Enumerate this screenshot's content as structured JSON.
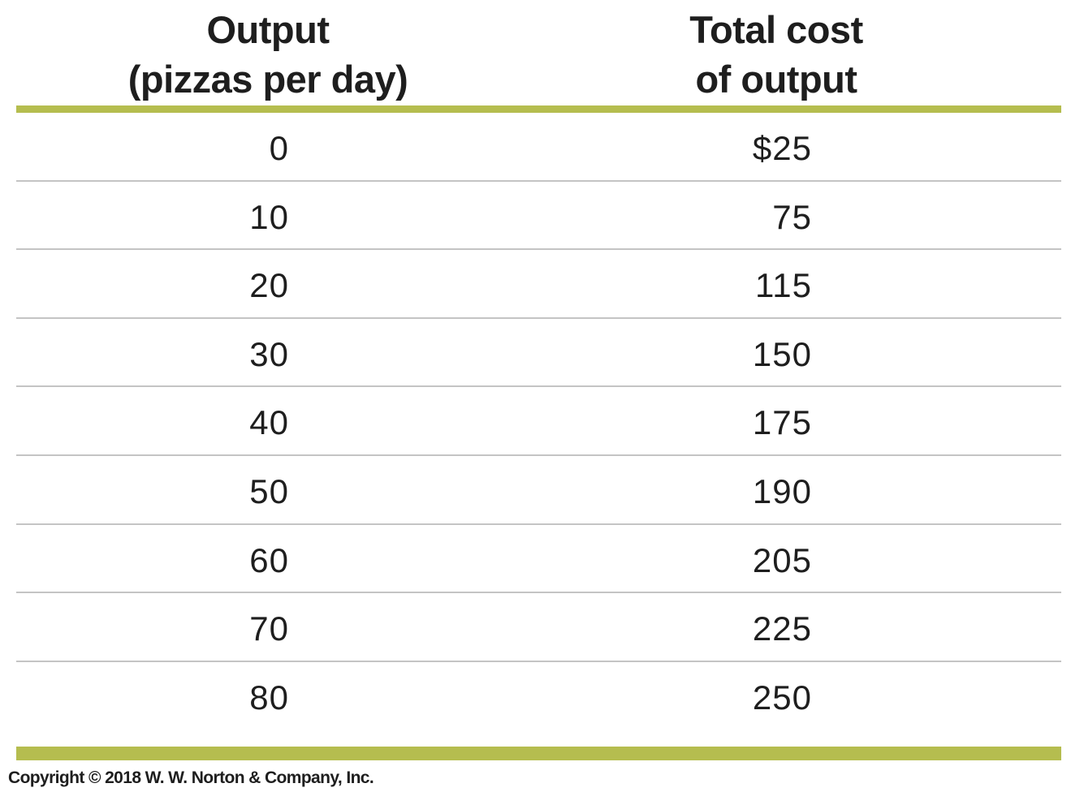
{
  "chart_data": {
    "type": "table",
    "columns": [
      {
        "lines": [
          "Output",
          "(pizzas per day)"
        ]
      },
      {
        "lines": [
          "Total cost",
          "of output"
        ]
      }
    ],
    "rows": [
      [
        "0",
        "$25"
      ],
      [
        "10",
        "75"
      ],
      [
        "20",
        "115"
      ],
      [
        "30",
        "150"
      ],
      [
        "40",
        "175"
      ],
      [
        "50",
        "190"
      ],
      [
        "60",
        "205"
      ],
      [
        "70",
        "225"
      ],
      [
        "80",
        "250"
      ]
    ],
    "x": [
      0,
      10,
      20,
      30,
      40,
      50,
      60,
      70,
      80
    ],
    "values": [
      25,
      75,
      115,
      150,
      175,
      190,
      205,
      225,
      250
    ]
  },
  "footer": {
    "copyright": "Copyright © 2018 W. W. Norton & Company, Inc."
  },
  "colors": {
    "accent_rule": "#b5bd4f",
    "row_divider": "#c4c4c4",
    "text": "#1e1e1e"
  }
}
